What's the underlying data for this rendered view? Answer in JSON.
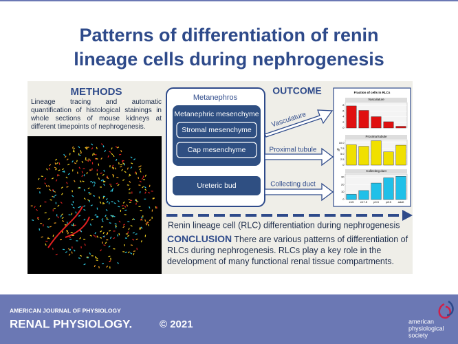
{
  "title": [
    "Patterns of differentiation of renin",
    "lineage cells during nephrogenesis"
  ],
  "methods": {
    "heading": "METHODS",
    "text": "Lineage tracing and automatic quantification of histological stainings in whole sections of mouse kidneys at different timepoints of nephrogenesis."
  },
  "diagram": {
    "outer": "Metanephros",
    "mesenchyme": "Metanephric mesenchyme",
    "stromal": "Stromal mesenchyme",
    "cap": "Cap mesenchyme",
    "bud": "Ureteric bud"
  },
  "outcome": {
    "heading": "OUTCOME",
    "arrows": [
      "Vasculature",
      "Proximal tubule",
      "Collecting duct"
    ]
  },
  "chart": {
    "title": "Fraction of cells in RLCs",
    "ylabel": "%",
    "categories": [
      "e15",
      "e17.5",
      "p0.5",
      "p8.5",
      "adult"
    ],
    "panels": [
      {
        "title": "Vasculature",
        "color": "#e01010",
        "ylim": [
          0,
          9
        ],
        "yticks": [
          0,
          2,
          4,
          6,
          8
        ],
        "values": [
          7.8,
          6.2,
          4.0,
          2.2,
          0.6
        ]
      },
      {
        "title": "Proximal tubule",
        "color": "#f0e000",
        "ylim": [
          0,
          11.5
        ],
        "yticks": [
          0,
          {
            "value": 2.5,
            "label": "2.5"
          },
          {
            "value": 5,
            "label": "5.0"
          },
          {
            "value": 7.5,
            "label": "7.5"
          },
          {
            "value": 10,
            "label": "10.0"
          }
        ],
        "values": [
          9.2,
          8.5,
          11,
          6,
          9
        ]
      },
      {
        "title": "Collecting duct",
        "color": "#20c0e8",
        "ylim": [
          0,
          34
        ],
        "yticks": [
          0,
          10,
          20,
          30
        ],
        "values": [
          7,
          12,
          22,
          29,
          31
        ]
      }
    ]
  },
  "timeline": "Renin lineage cell (RLC) differentiation during nephrogenesis",
  "conclusion": {
    "heading": "CONCLUSION",
    "text": "There are various patterns of differentiation of RLCs during nephrogenesis. RLCs play a key role in the development of many functional renal tissue compartments."
  },
  "footer": {
    "journal": "AMERICAN JOURNAL OF PHYSIOLOGY",
    "section": "RENAL PHYSIOLOGY.",
    "copyright": "© 2021",
    "society": [
      "american",
      "physiological",
      "society"
    ]
  }
}
